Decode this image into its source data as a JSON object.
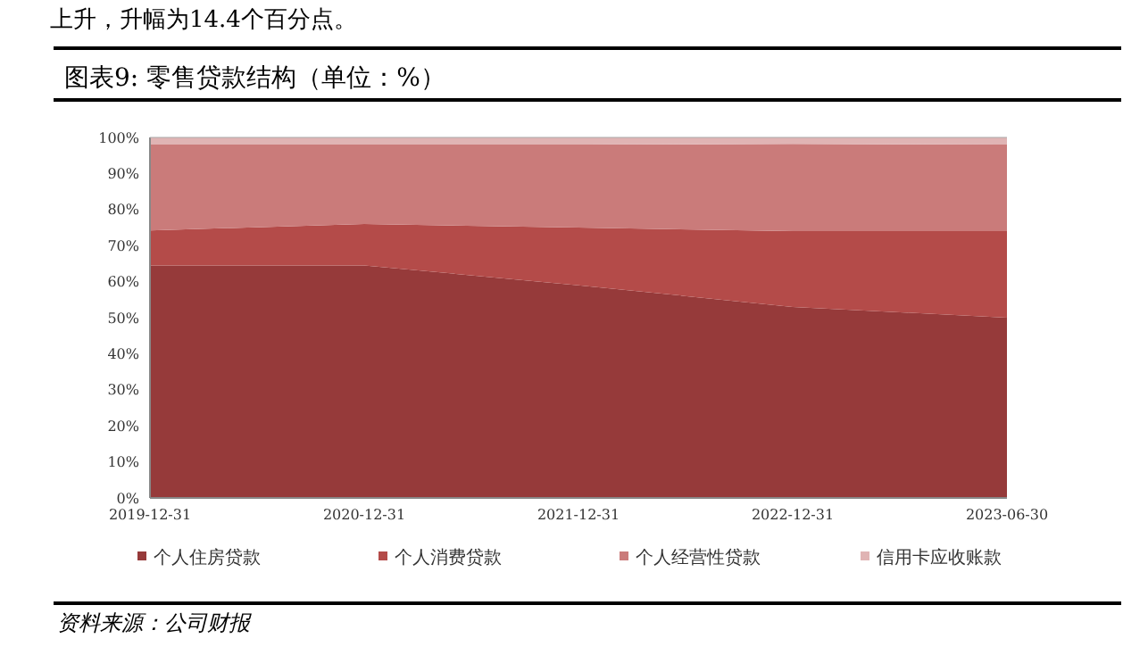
{
  "chart_data": {
    "type": "area",
    "title": "图表9: 零售贷款结构（单位：%）",
    "stacked": true,
    "legend": "bottom",
    "grid": false,
    "categories": [
      "2019-12-31",
      "2020-12-31",
      "2021-12-31",
      "2022-12-31",
      "2023-06-30"
    ],
    "ylim": [
      0,
      100
    ],
    "yticks": [
      {
        "value": 0,
        "label": "0%"
      },
      {
        "value": 10,
        "label": "10%"
      },
      {
        "value": 20,
        "label": "20%"
      },
      {
        "value": 30,
        "label": "30%"
      },
      {
        "value": 40,
        "label": "40%"
      },
      {
        "value": 50,
        "label": "50%"
      },
      {
        "value": 60,
        "label": "60%"
      },
      {
        "value": 70,
        "label": "70%"
      },
      {
        "value": 80,
        "label": "80%"
      },
      {
        "value": 90,
        "label": "90%"
      },
      {
        "value": 100,
        "label": "100%"
      }
    ],
    "series": [
      {
        "name": "个人住房贷款",
        "color": "#963a3a",
        "values": [
          64.5,
          64.5,
          59,
          53,
          50
        ]
      },
      {
        "name": "个人消费贷款",
        "color": "#b44b49",
        "values": [
          9.7,
          11.5,
          16,
          21,
          24
        ]
      },
      {
        "name": "个人经营性贷款",
        "color": "#ca7b7a",
        "values": [
          23.8,
          22,
          23,
          24.2,
          24
        ]
      },
      {
        "name": "信用卡应收账款",
        "color": "#e0b4b4",
        "values": [
          2,
          2,
          2,
          1.8,
          2
        ]
      }
    ],
    "annotations": [
      "上升，升幅为14.4个百分点。",
      "资料来源：公司财报"
    ]
  }
}
